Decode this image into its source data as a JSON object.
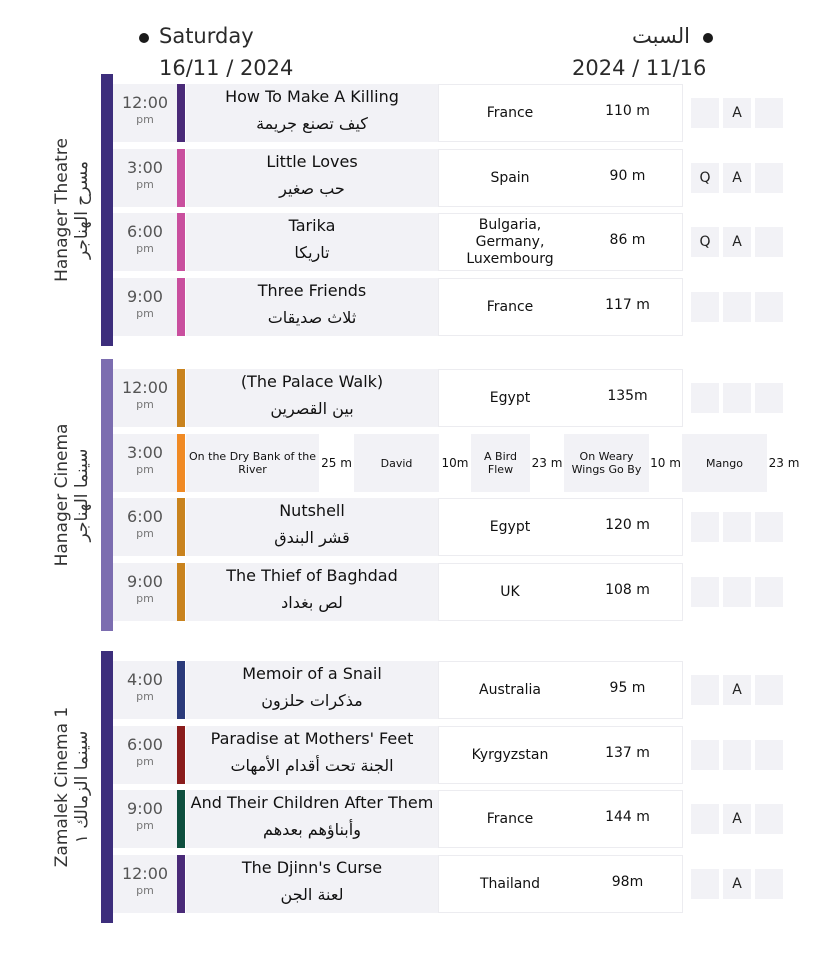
{
  "header": {
    "day_en": "Saturday",
    "date_en": "16/11 / 2024",
    "day_ar": "السبت",
    "date_ar": "2024 / 11/16"
  },
  "venues": [
    {
      "name_en": "Hanager Theatre",
      "name_ar": "مسرح الهناجر",
      "color": "#3d2e7c",
      "screenings": [
        {
          "time": "12:00",
          "period": "pm",
          "title_en": "How To Make A Killing",
          "title_ar": "كيف تصنع جريمة",
          "country": "France",
          "duration": "110 m",
          "badges": [
            "",
            "A",
            ""
          ],
          "color": "#4a2a78"
        },
        {
          "time": "3:00",
          "period": "pm",
          "title_en": "Little Loves",
          "title_ar": "حب صغير",
          "country": "Spain",
          "duration": "90 m",
          "badges": [
            "Q",
            "A",
            ""
          ],
          "color": "#c94f9e"
        },
        {
          "time": "6:00",
          "period": "pm",
          "title_en": "Tarika",
          "title_ar": "تاريكا",
          "country": "Bulgaria,\nGermany,\nLuxembourg",
          "duration": "86 m",
          "badges": [
            "Q",
            "A",
            ""
          ],
          "color": "#c94f9e"
        },
        {
          "time": "9:00",
          "period": "pm",
          "title_en": "Three Friends",
          "title_ar": "ثلاث صديقات",
          "country": "France",
          "duration": "117 m",
          "badges": [
            "",
            "",
            ""
          ],
          "color": "#c94f9e"
        }
      ]
    },
    {
      "name_en": "Hanager Cinema",
      "name_ar": "سينما الهناجر",
      "color": "#7c6db0",
      "screenings": [
        {
          "time": "12:00",
          "period": "pm",
          "title_en": "(The Palace Walk)",
          "title_ar": "بين القصرين",
          "country": "Egypt",
          "duration": "135m",
          "badges": [
            "",
            "",
            ""
          ],
          "color": "#c9831e"
        },
        {
          "time": "3:00",
          "period": "pm",
          "shorts": [
            {
              "title": "On the Dry Bank of the River",
              "duration": "25 m"
            },
            {
              "title": "David",
              "duration": "10m"
            },
            {
              "title": "A Bird Flew",
              "duration": "23 m"
            },
            {
              "title": "On Weary Wings Go By",
              "duration": "10 m"
            },
            {
              "title": "Mango",
              "duration": "23 m"
            }
          ],
          "color": "#f08a24"
        },
        {
          "time": "6:00",
          "period": "pm",
          "title_en": "Nutshell",
          "title_ar": "قشر البندق",
          "country": "Egypt",
          "duration": "120 m",
          "badges": [
            "",
            "",
            ""
          ],
          "color": "#c9831e"
        },
        {
          "time": "9:00",
          "period": "pm",
          "title_en": "The Thief of Baghdad",
          "title_ar": "لص بغداد",
          "country": "UK",
          "duration": "108 m",
          "badges": [
            "",
            "",
            ""
          ],
          "color": "#c9831e"
        }
      ]
    },
    {
      "name_en": "Zamalek Cinema 1",
      "name_ar": "سينما الزمالك ١",
      "color": "#3d2e7c",
      "screenings": [
        {
          "time": "4:00",
          "period": "pm",
          "title_en": "Memoir of a Snail",
          "title_ar": "مذكرات حلزون",
          "country": "Australia",
          "duration": "95 m",
          "badges": [
            "",
            "A",
            ""
          ],
          "color": "#2b3a7a"
        },
        {
          "time": "6:00",
          "period": "pm",
          "title_en": "Paradise at Mothers' Feet",
          "title_ar": "الجنة تحت أقدام الأمهات",
          "country": "Kyrgyzstan",
          "duration": "137 m",
          "badges": [
            "",
            "",
            ""
          ],
          "color": "#8a1c1c"
        },
        {
          "time": "9:00",
          "period": "pm",
          "title_en": "And Their Children After Them",
          "title_ar": "وأبناؤهم بعدهم",
          "country": "France",
          "duration": "144 m",
          "badges": [
            "",
            "A",
            ""
          ],
          "color": "#0e4e3e"
        },
        {
          "time": "12:00",
          "period": "pm",
          "title_en": "The Djinn's Curse",
          "title_ar": "لعنة الجن",
          "country": "Thailand",
          "duration": "98m",
          "badges": [
            "",
            "A",
            ""
          ],
          "color": "#4a2a78"
        }
      ]
    }
  ]
}
